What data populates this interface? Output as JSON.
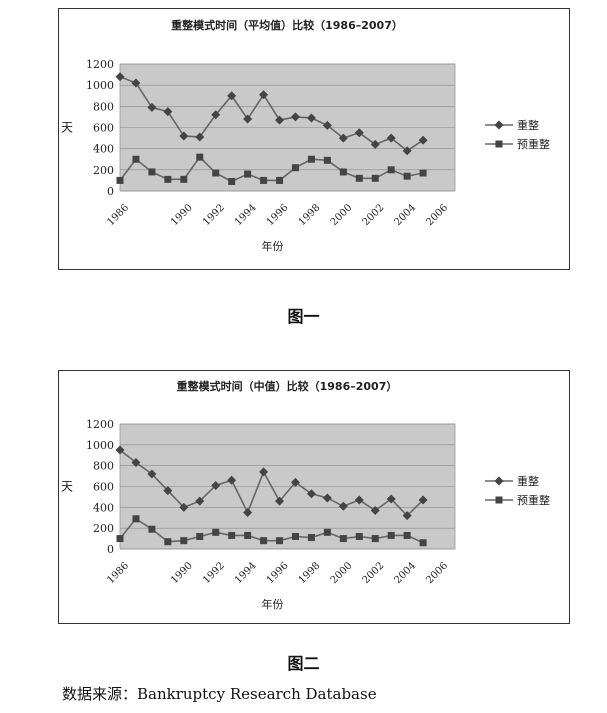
{
  "charts": [
    {
      "caption": "图一",
      "chart_data": {
        "type": "line",
        "title": "重整模式时间（平均值）比较（1986–2007）",
        "xlabel": "年份",
        "ylabel": "天",
        "ylim": [
          0,
          1200
        ],
        "yticks": [
          "0",
          "200",
          "400",
          "600",
          "800",
          "1000",
          "1200"
        ],
        "x": [
          1986,
          1987,
          1988,
          1989,
          1990,
          1991,
          1992,
          1993,
          1994,
          1995,
          1996,
          1997,
          1998,
          1999,
          2000,
          2001,
          2002,
          2003,
          2004,
          2005,
          2006,
          2007
        ],
        "xtick_labels": [
          "1986",
          "1990",
          "1992",
          "1994",
          "1996",
          "1998",
          "2000",
          "2002",
          "2004",
          "2006"
        ],
        "legend_position": "right",
        "grid": true,
        "colors": {
          "plot_bg": "#c9c9c9",
          "line": "#666666",
          "marker": "#444444"
        },
        "series": [
          {
            "name": "重整",
            "marker": "diamond",
            "values": [
              1080,
              1020,
              790,
              750,
              520,
              510,
              720,
              900,
              680,
              910,
              670,
              700,
              690,
              620,
              500,
              550,
              440,
              500,
              380,
              480,
              null,
              null
            ]
          },
          {
            "name": "预重整",
            "marker": "square",
            "values": [
              100,
              300,
              180,
              110,
              110,
              320,
              170,
              90,
              160,
              100,
              100,
              220,
              300,
              290,
              180,
              120,
              120,
              200,
              140,
              170,
              null,
              null
            ]
          }
        ]
      }
    },
    {
      "caption": "图二",
      "chart_data": {
        "type": "line",
        "title": "重整模式时间（中值）比较（1986–2007）",
        "xlabel": "年份",
        "ylabel": "天",
        "ylim": [
          0,
          1200
        ],
        "yticks": [
          "0",
          "200",
          "400",
          "600",
          "800",
          "1000",
          "1200"
        ],
        "x": [
          1986,
          1987,
          1988,
          1989,
          1990,
          1991,
          1992,
          1993,
          1994,
          1995,
          1996,
          1997,
          1998,
          1999,
          2000,
          2001,
          2002,
          2003,
          2004,
          2005,
          2006,
          2007
        ],
        "xtick_labels": [
          "1986",
          "1990",
          "1992",
          "1994",
          "1996",
          "1998",
          "2000",
          "2002",
          "2004",
          "2006"
        ],
        "legend_position": "right",
        "grid": true,
        "colors": {
          "plot_bg": "#c9c9c9",
          "line": "#666666",
          "marker": "#444444"
        },
        "series": [
          {
            "name": "重整",
            "marker": "diamond",
            "values": [
              950,
              830,
              720,
              560,
              400,
              460,
              610,
              660,
              350,
              740,
              460,
              640,
              530,
              490,
              410,
              470,
              370,
              480,
              320,
              470,
              null,
              null
            ]
          },
          {
            "name": "预重整",
            "marker": "square",
            "values": [
              100,
              290,
              190,
              70,
              80,
              120,
              160,
              130,
              130,
              80,
              80,
              120,
              110,
              160,
              100,
              120,
              100,
              130,
              130,
              60,
              null,
              null
            ]
          }
        ]
      }
    }
  ],
  "source_text": "数据来源：Bankruptcy Research Database"
}
